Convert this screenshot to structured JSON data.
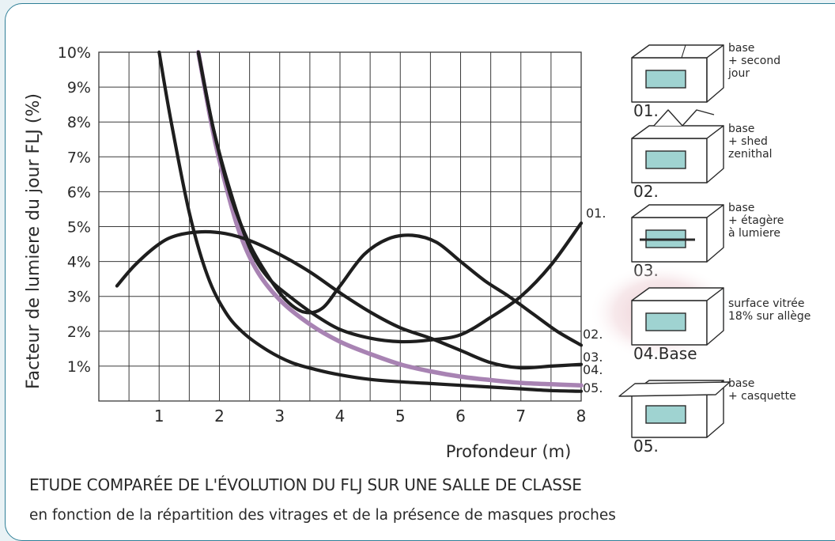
{
  "chart_data": {
    "type": "line",
    "ylabel": "Facteur de lumiere du jour FLJ (%)",
    "xlabel": "Profondeur (m)",
    "xlim": [
      0,
      8
    ],
    "ylim": [
      0,
      10
    ],
    "x_ticks": [
      1,
      2,
      3,
      4,
      5,
      6,
      7,
      8
    ],
    "y_ticks": [
      1,
      2,
      3,
      4,
      5,
      6,
      7,
      8,
      9,
      10
    ],
    "x_tick_labels": [
      "1",
      "2",
      "3",
      "4",
      "5",
      "6",
      "7",
      "8"
    ],
    "y_tick_labels": [
      "1%",
      "2%",
      "3%",
      "4%",
      "5%",
      "6%",
      "7%",
      "8%",
      "9%",
      "10%"
    ],
    "grid": true,
    "series": [
      {
        "name": "01.",
        "color": "#1e1e1e",
        "points": [
          [
            0.3,
            3.3
          ],
          [
            0.6,
            3.9
          ],
          [
            1.0,
            4.5
          ],
          [
            1.3,
            4.75
          ],
          [
            1.7,
            4.85
          ],
          [
            2.1,
            4.8
          ],
          [
            2.5,
            4.6
          ],
          [
            3.0,
            4.2
          ],
          [
            3.5,
            3.7
          ],
          [
            4.0,
            3.1
          ],
          [
            4.5,
            2.55
          ],
          [
            5.0,
            2.1
          ],
          [
            5.5,
            1.8
          ],
          [
            6.0,
            1.45
          ],
          [
            6.5,
            1.1
          ],
          [
            7.0,
            0.95
          ],
          [
            7.5,
            1.0
          ],
          [
            8.0,
            1.05
          ]
        ]
      },
      {
        "name": "02.",
        "color": "#1e1e1e",
        "points": [
          [
            1.65,
            10.0
          ],
          [
            1.9,
            7.8
          ],
          [
            2.2,
            5.8
          ],
          [
            2.5,
            4.5
          ],
          [
            2.8,
            3.6
          ],
          [
            3.1,
            2.9
          ],
          [
            3.4,
            2.55
          ],
          [
            3.7,
            2.65
          ],
          [
            4.0,
            3.3
          ],
          [
            4.4,
            4.2
          ],
          [
            4.8,
            4.65
          ],
          [
            5.2,
            4.75
          ],
          [
            5.6,
            4.55
          ],
          [
            6.0,
            4.0
          ],
          [
            6.4,
            3.45
          ],
          [
            6.8,
            3.0
          ],
          [
            7.2,
            2.5
          ],
          [
            7.6,
            2.0
          ],
          [
            8.0,
            1.6
          ]
        ]
      },
      {
        "name": "03.",
        "color": "#1e1e1e",
        "points": [
          [
            1.65,
            10.0
          ],
          [
            1.9,
            7.8
          ],
          [
            2.2,
            5.9
          ],
          [
            2.5,
            4.4
          ],
          [
            2.8,
            3.55
          ],
          [
            3.2,
            2.95
          ],
          [
            3.6,
            2.45
          ],
          [
            4.0,
            2.05
          ],
          [
            4.5,
            1.8
          ],
          [
            5.0,
            1.7
          ],
          [
            5.5,
            1.75
          ],
          [
            6.0,
            1.9
          ],
          [
            6.5,
            2.4
          ],
          [
            7.0,
            3.0
          ],
          [
            7.5,
            3.9
          ],
          [
            8.0,
            5.1
          ]
        ]
      },
      {
        "name": "04.",
        "color": "#a883b3",
        "points": [
          [
            1.65,
            10.0
          ],
          [
            1.85,
            8.1
          ],
          [
            2.0,
            6.9
          ],
          [
            2.3,
            5.0
          ],
          [
            2.6,
            3.8
          ],
          [
            3.0,
            2.9
          ],
          [
            3.5,
            2.2
          ],
          [
            4.0,
            1.7
          ],
          [
            4.5,
            1.35
          ],
          [
            5.0,
            1.05
          ],
          [
            5.5,
            0.85
          ],
          [
            6.0,
            0.7
          ],
          [
            6.5,
            0.6
          ],
          [
            7.0,
            0.52
          ],
          [
            7.5,
            0.48
          ],
          [
            8.0,
            0.45
          ]
        ]
      },
      {
        "name": "05.",
        "color": "#1e1e1e",
        "points": [
          [
            1.0,
            10.0
          ],
          [
            1.2,
            8.0
          ],
          [
            1.5,
            5.4
          ],
          [
            1.8,
            3.6
          ],
          [
            2.1,
            2.55
          ],
          [
            2.4,
            1.95
          ],
          [
            2.8,
            1.45
          ],
          [
            3.2,
            1.1
          ],
          [
            3.6,
            0.9
          ],
          [
            4.0,
            0.75
          ],
          [
            4.5,
            0.62
          ],
          [
            5.0,
            0.55
          ],
          [
            5.5,
            0.5
          ],
          [
            6.0,
            0.45
          ],
          [
            6.5,
            0.4
          ],
          [
            7.0,
            0.35
          ],
          [
            7.5,
            0.3
          ],
          [
            8.0,
            0.28
          ]
        ]
      }
    ],
    "end_labels": [
      "01.",
      "02.",
      "03.",
      "04.",
      "05."
    ]
  },
  "legend": {
    "items": [
      {
        "id": "01.",
        "lines": [
          "base",
          "+ second",
          "jour"
        ]
      },
      {
        "id": "02.",
        "lines": [
          "base",
          "+ shed",
          "zenithal"
        ]
      },
      {
        "id": "03.",
        "lines": [
          "base",
          "+ étagère",
          "à lumiere"
        ]
      },
      {
        "id": "04.Base",
        "lines": [
          "surface vitrée",
          "18% sur allège"
        ]
      },
      {
        "id": "05.",
        "lines": [
          "base",
          "+ casquette"
        ]
      }
    ],
    "highlight_color": "#d9a7b0",
    "glazing_color": "#9fd3d1"
  },
  "caption": {
    "title": "ETUDE COMPARÉE DE L'ÉVOLUTION DU FLJ SUR UNE SALLE DE CLASSE",
    "subtitle": "en fonction de la répartition des vitrages et de la présence de masques proches"
  }
}
